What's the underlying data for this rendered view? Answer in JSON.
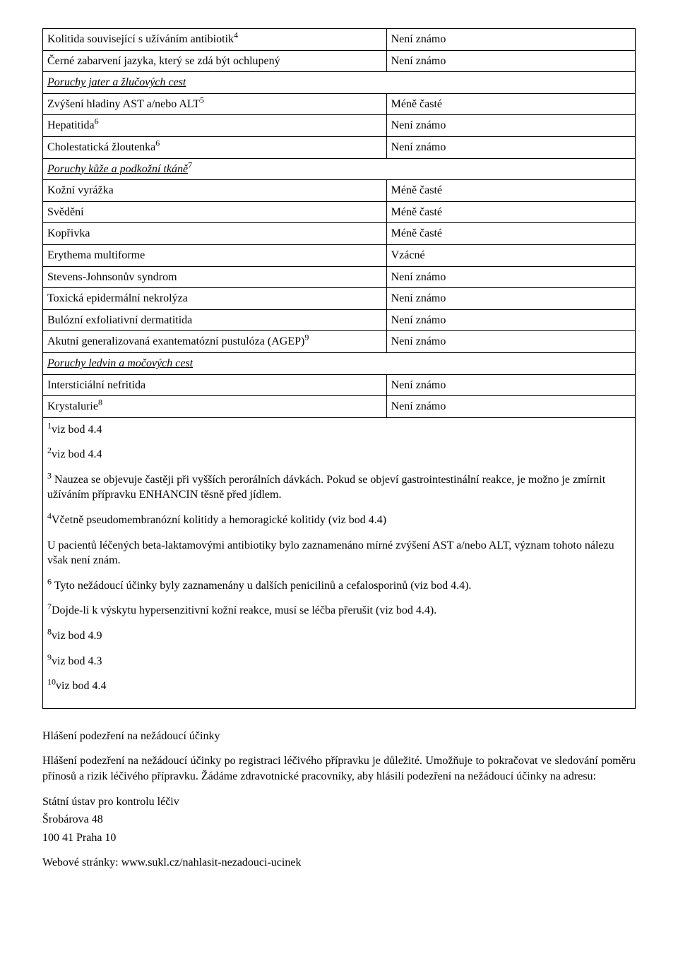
{
  "table": {
    "rows": [
      {
        "c1": "Kolitida související s užíváním antibiotik",
        "sup": "4",
        "c2": "Není známo"
      },
      {
        "c1": "Černé zabarvení jazyka, který se zdá být ochlupený",
        "c2": "Není známo"
      },
      {
        "header": true,
        "c1": "Poruchy jater a žlučových cest"
      },
      {
        "c1": "Zvýšení hladiny AST a/nebo ALT",
        "sup": "5",
        "c2": "Méně časté"
      },
      {
        "c1": "Hepatitida",
        "sup": "6",
        "c2": "Není známo"
      },
      {
        "c1": "Cholestatická žloutenka",
        "sup": "6",
        "c2": "Není známo"
      },
      {
        "header": true,
        "c1": "Poruchy kůže a podkožní tkáně",
        "sup": "7"
      },
      {
        "c1": "Kožní vyrážka",
        "c2": "Méně časté"
      },
      {
        "c1": "Svědění",
        "c2": "Méně časté"
      },
      {
        "c1": "Kopřivka",
        "c2": "Méně časté"
      },
      {
        "c1": "Erythema multiforme",
        "c2": "Vzácné"
      },
      {
        "c1": "Stevens-Johnsonův syndrom",
        "c2": "Není známo"
      },
      {
        "c1": "Toxická epidermální nekrolýza",
        "c2": "Není známo"
      },
      {
        "c1": "Bulózní exfoliativní dermatitida",
        "c2": "Není známo"
      },
      {
        "c1": "Akutní generalizovaná exantematózní pustulóza (AGEP)",
        "sup": "9",
        "c2": "Není známo"
      },
      {
        "header": true,
        "c1": "Poruchy ledvin a močových cest"
      },
      {
        "c1": "Intersticiální nefritida",
        "c2": "Není známo"
      },
      {
        "c1": "Krystalurie",
        "sup": "8",
        "c2": "Není známo"
      }
    ],
    "footnotes": [
      {
        "pre": "1",
        "text": "viz bod 4.4"
      },
      {
        "pre": "2",
        "text": "viz bod 4.4"
      },
      {
        "pre": "3",
        "text": " Nauzea se objevuje častěji při vyšších perorálních dávkách. Pokud se objeví gastrointestinální reakce, je možno je zmírnit užíváním přípravku ENHANCIN těsně před jídlem."
      },
      {
        "pre": "4",
        "text": "Včetně pseudomembranózní kolitidy a hemoragické kolitidy (viz bod 4.4)"
      },
      {
        "plain": true,
        "text": "U pacientů léčených beta-laktamovými antibiotiky bylo zaznamenáno mírné zvýšení AST a/nebo ALT, význam tohoto nálezu však není znám."
      },
      {
        "pre": "6",
        "text": " Tyto nežádoucí účinky byly zaznamenány u dalších penicilinů a cefalosporinů (viz bod 4.4)."
      },
      {
        "pre": "7",
        "text": "Dojde-li k výskytu hypersenzitivní kožní reakce, musí se léčba přerušit (viz bod 4.4)."
      },
      {
        "pre": "8",
        "text": "viz bod 4.9"
      },
      {
        "pre": "9",
        "text": "viz bod 4.3"
      },
      {
        "pre": "10",
        "text": "viz bod 4.4"
      }
    ]
  },
  "after": {
    "heading": "Hlášení podezření na nežádoucí účinky",
    "para": "Hlášení podezření na nežádoucí účinky po registraci léčivého přípravku je důležité. Umožňuje to pokračovat ve sledování poměru přínosů a rizik léčivého přípravku. Žádáme zdravotnické pracovníky, aby hlásili podezření na nežádoucí účinky na adresu:",
    "addr1": "Státní ústav pro kontrolu léčiv",
    "addr2": "Šrobárova 48",
    "addr3": "100 41 Praha 10",
    "web": "Webové stránky: www.sukl.cz/nahlasit-nezadouci-ucinek"
  }
}
